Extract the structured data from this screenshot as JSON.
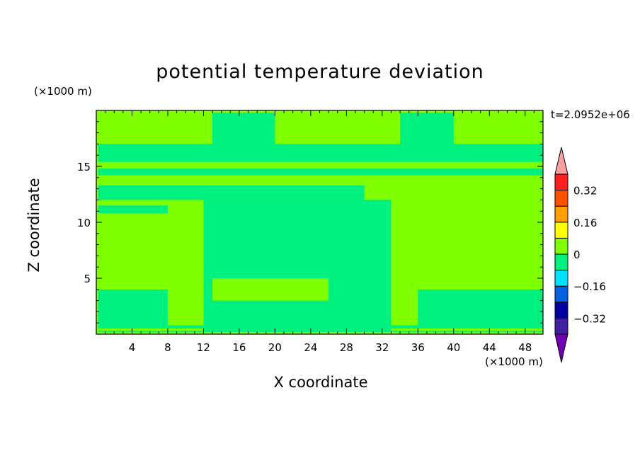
{
  "chart_data": {
    "type": "heatmap",
    "title": "potential temperature deviation",
    "xlabel": "X coordinate",
    "ylabel": "Z coordinate",
    "x_unit_label": "(×1000 m)",
    "y_unit_label": "(×1000 m)",
    "timestamp": "t=2.0952e+06",
    "xlim": [
      0,
      50
    ],
    "ylim": [
      0,
      20
    ],
    "x_ticks": [
      4,
      8,
      12,
      16,
      20,
      24,
      28,
      32,
      36,
      40,
      44,
      48
    ],
    "y_ticks": [
      5,
      10,
      15
    ],
    "colorbar": {
      "colors": [
        "#7000b0",
        "#4020a0",
        "#0000a0",
        "#0060e0",
        "#00e0ff",
        "#00f080",
        "#80ff00",
        "#ffff00",
        "#ffa000",
        "#ff5000",
        "#ff2020",
        "#f8a0a0"
      ],
      "levels": [
        -0.4,
        -0.32,
        -0.24,
        -0.16,
        -0.08,
        0,
        0.08,
        0.16,
        0.24,
        0.32,
        0.4
      ],
      "tick_labels": [
        "0.32",
        "0.16",
        "0",
        "−0.16",
        "−0.32"
      ],
      "tick_values": [
        0.32,
        0.16,
        0,
        -0.16,
        -0.32
      ]
    },
    "field": {
      "background_value": 0.04,
      "dominant_colors": [
        "#80ff00",
        "#00f080"
      ],
      "regions": [
        {
          "value": -0.04,
          "x": [
            0.2,
            50
          ],
          "z": [
            0.2,
            0.8
          ]
        },
        {
          "value": 0.04,
          "x": [
            0.2,
            50
          ],
          "z": [
            0.3,
            0.5
          ]
        },
        {
          "value": -0.04,
          "x": [
            0.2,
            8
          ],
          "z": [
            0.8,
            4.0
          ]
        },
        {
          "value": -0.04,
          "x": [
            12,
            33
          ],
          "z": [
            0.2,
            12
          ]
        },
        {
          "value": 0.04,
          "x": [
            13,
            26
          ],
          "z": [
            3,
            5
          ]
        },
        {
          "value": -0.04,
          "x": [
            36,
            50
          ],
          "z": [
            0.8,
            4.0
          ]
        },
        {
          "value": -0.04,
          "x": [
            0.2,
            50
          ],
          "z": [
            14.2,
            17.0
          ]
        },
        {
          "value": 0.04,
          "x": [
            0.2,
            50
          ],
          "z": [
            14.8,
            15.4
          ]
        },
        {
          "value": -0.04,
          "x": [
            0.2,
            30
          ],
          "z": [
            12.0,
            13.3
          ]
        },
        {
          "value": -0.04,
          "x": [
            13,
            20
          ],
          "z": [
            17.0,
            19.8
          ]
        },
        {
          "value": -0.04,
          "x": [
            34,
            40
          ],
          "z": [
            17.0,
            19.8
          ]
        },
        {
          "value": -0.04,
          "x": [
            0.2,
            8
          ],
          "z": [
            10.8,
            11.5
          ]
        }
      ]
    }
  }
}
